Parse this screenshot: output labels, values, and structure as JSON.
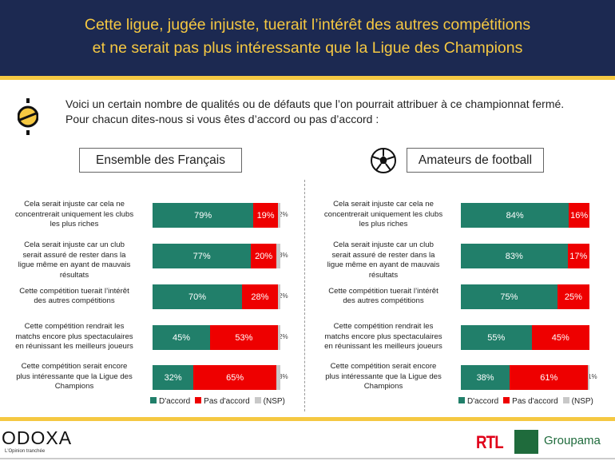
{
  "header": {
    "title_line1": "Cette ligue, jugée injuste, tuerait l’intérêt des autres compétitions",
    "title_line2": "et ne serait pas plus intéressante que la Ligue des Champions"
  },
  "intro": {
    "line1": "Voici un certain nombre de qualités ou de défauts que l’on pourrait attribuer à ce championnat fermé.",
    "line2": "Pour chacun dites-nous si vous êtes d’accord ou pas d’accord :"
  },
  "colors": {
    "accord": "#217f6a",
    "pas_accord": "#ee0000",
    "nsp": "#c8c8c8",
    "navy": "#1c2951",
    "yellow": "#f5c842"
  },
  "legend": {
    "accord": "D'accord",
    "pas_accord": "Pas d'accord",
    "nsp": "(NSP)"
  },
  "chart_data": [
    {
      "type": "bar",
      "title": "Ensemble des Français",
      "categories": [
        "Cela serait injuste car cela ne concentrerait uniquement les clubs les plus riches",
        "Cela serait injuste car un club serait assuré de rester dans la ligue même en ayant de mauvais résultats",
        "Cette compétition tuerait l’intérêt des autres compétitions",
        "Cette compétition rendrait les matchs encore plus spectaculaires en réunissant les meilleurs joueurs",
        "Cette compétition serait encore plus intéressante que la Ligue des Champions"
      ],
      "series": [
        {
          "name": "D'accord",
          "values": [
            79,
            77,
            70,
            45,
            32
          ]
        },
        {
          "name": "Pas d'accord",
          "values": [
            19,
            20,
            28,
            53,
            65
          ]
        },
        {
          "name": "(NSP)",
          "values": [
            2,
            3,
            2,
            2,
            3
          ]
        }
      ]
    },
    {
      "type": "bar",
      "title": "Amateurs de football",
      "categories": [
        "Cela serait injuste car cela ne concentrerait uniquement les clubs les plus riches",
        "Cela serait injuste car un club serait assuré de rester dans la ligue même en ayant de mauvais résultats",
        "Cette compétition tuerait l’intérêt des autres compétitions",
        "Cette compétition rendrait les matchs encore plus spectaculaires en réunissant les meilleurs joueurs",
        "Cette compétition serait encore plus intéressante que la Ligue des Champions"
      ],
      "series": [
        {
          "name": "D'accord",
          "values": [
            84,
            83,
            75,
            55,
            38
          ]
        },
        {
          "name": "Pas d'accord",
          "values": [
            16,
            17,
            25,
            45,
            61
          ]
        },
        {
          "name": "(NSP)",
          "values": [
            0,
            0,
            0,
            0,
            1
          ]
        }
      ]
    }
  ],
  "footer": {
    "brand": "ODOXA",
    "tagline": "L'Opinion tranchée",
    "rtl": "RTL",
    "groupama": "Groupama"
  }
}
